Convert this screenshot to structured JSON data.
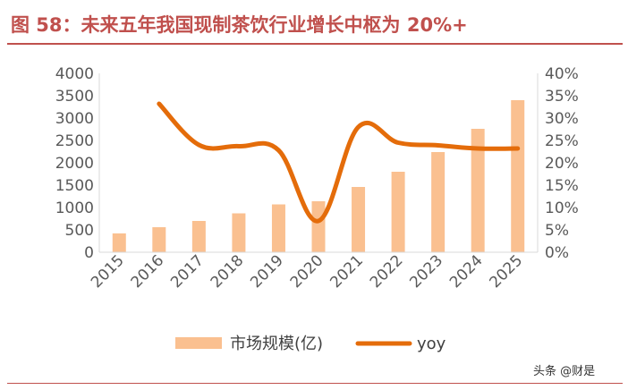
{
  "title": "图 58：未来五年我国现制茶饮行业增长中枢为 20%+",
  "watermark": "头条 @财是",
  "colors": {
    "title": "#c0504d",
    "bar": "#fac090",
    "line": "#e46c0a",
    "axis_text": "#595959"
  },
  "chart_data": {
    "type": "bar",
    "categories": [
      "2015",
      "2016",
      "2017",
      "2018",
      "2019",
      "2020",
      "2021",
      "2022",
      "2023",
      "2024",
      "2025"
    ],
    "series": [
      {
        "name": "市场规模(亿)",
        "type": "bar",
        "axis": "left",
        "values": [
          422,
          560,
          700,
          870,
          1070,
          1140,
          1460,
          1800,
          2240,
          2760,
          3400
        ]
      },
      {
        "name": "yoy",
        "type": "line",
        "axis": "right",
        "unit": "%",
        "values": [
          null,
          33.2,
          24.0,
          23.7,
          22.8,
          7.0,
          28.0,
          24.5,
          23.9,
          23.2,
          23.2
        ]
      }
    ],
    "y_left": {
      "min": 0,
      "max": 4000,
      "step": 500,
      "ticks": [
        "0",
        "500",
        "1000",
        "1500",
        "2000",
        "2500",
        "3000",
        "3500",
        "4000"
      ]
    },
    "y_right": {
      "min": 0,
      "max": 40,
      "step": 5,
      "ticks": [
        "0%",
        "5%",
        "10%",
        "15%",
        "20%",
        "25%",
        "30%",
        "35%",
        "40%"
      ]
    },
    "grid": false,
    "legend_position": "bottom"
  }
}
